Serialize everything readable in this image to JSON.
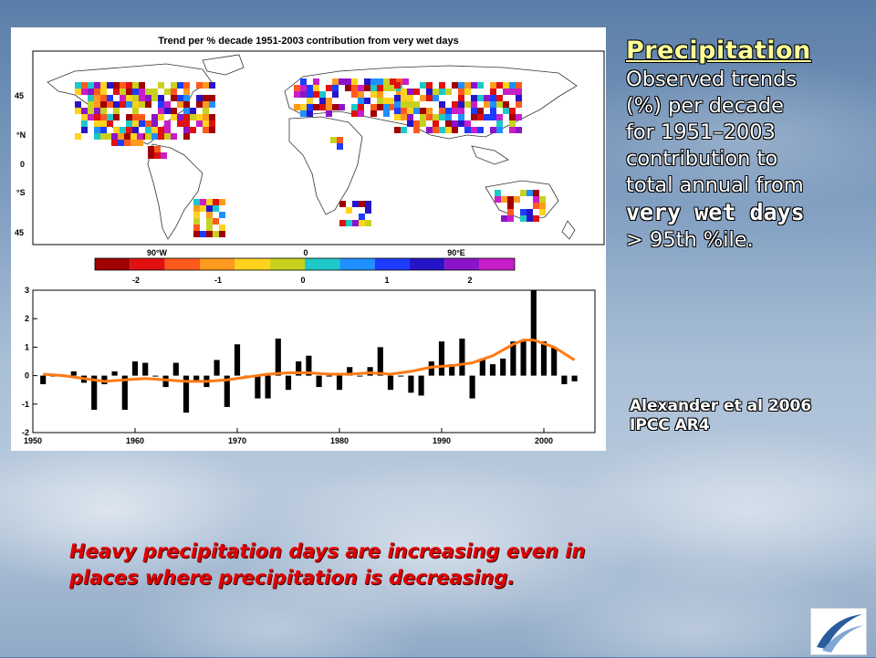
{
  "slide": {
    "heading": "Precipitation",
    "body_line1": "Observed trends",
    "body_line2": "(%) per decade",
    "body_line3": "for 1951–2003",
    "body_line4": "contribution to",
    "body_line5": "total annual from",
    "body_emph": "very wet days",
    "body_tail": "> 95th %ile.",
    "citation_line1": "Alexander et al 2006",
    "citation_line2": "IPCC AR4",
    "bottom_line1": "Heavy precipitation days are increasing even in",
    "bottom_line2": "places where precipitation is decreasing."
  },
  "map": {
    "title": "Trend per % decade 1951-2003 contribution from very wet days",
    "lat_labels": [
      "45",
      "°N",
      "0",
      "°S",
      "45"
    ],
    "lon_labels": [
      "90°W",
      "0",
      "90°E"
    ],
    "colorbar_colors": [
      "#a00000",
      "#e01010",
      "#ff5a1e",
      "#ff9a1e",
      "#ffd21e",
      "#c8d21e",
      "#1ec8c8",
      "#1e90ff",
      "#1e3cff",
      "#2814c8",
      "#8c14c8",
      "#c81ec8"
    ],
    "colorbar_ticks": [
      "-2",
      "-1",
      "0",
      "1",
      "2"
    ]
  },
  "chart_data": {
    "type": "bar",
    "title": "",
    "xlabel": "",
    "ylabel": "",
    "ylim": [
      -2,
      3
    ],
    "xlim": [
      1950,
      2005
    ],
    "x_ticks": [
      "1950",
      "1960",
      "1970",
      "1980",
      "1990",
      "2000"
    ],
    "y_ticks": [
      "3",
      "2",
      "1",
      "0",
      "-1",
      "-2"
    ],
    "series": [
      {
        "x": [
          1951,
          1952,
          1953,
          1954,
          1955,
          1956,
          1957,
          1958,
          1959,
          1960,
          1961,
          1962,
          1963,
          1964,
          1965,
          1966,
          1967,
          1968,
          1969,
          1970,
          1971,
          1972,
          1973,
          1974,
          1975,
          1976,
          1977,
          1978,
          1979,
          1980,
          1981,
          1982,
          1983,
          1984,
          1985,
          1986,
          1987,
          1988,
          1989,
          1990,
          1991,
          1992,
          1993,
          1994,
          1995,
          1996,
          1997,
          1998,
          1999,
          2000,
          2001,
          2002,
          2003
        ],
        "values": [
          -0.3,
          0.0,
          0.0,
          0.15,
          -0.25,
          -1.2,
          -0.3,
          0.15,
          -1.2,
          0.5,
          0.45,
          0.0,
          -0.4,
          0.45,
          -1.3,
          -0.2,
          -0.4,
          0.55,
          -1.1,
          1.1,
          0.0,
          -0.8,
          -0.8,
          1.3,
          -0.5,
          0.5,
          0.7,
          -0.4,
          0.0,
          -0.5,
          0.3,
          0.0,
          0.3,
          1.0,
          -0.5,
          0.0,
          -0.6,
          -0.7,
          0.5,
          1.2,
          0.4,
          1.3,
          -0.8,
          0.6,
          0.4,
          0.6,
          1.2,
          1.2,
          3.0,
          1.2,
          1.0,
          -0.3,
          -0.2
        ]
      },
      {
        "name": "",
        "x": [
          1951,
          1953,
          1955,
          1957,
          1959,
          1961,
          1963,
          1965,
          1967,
          1969,
          1971,
          1973,
          1975,
          1977,
          1979,
          1981,
          1983,
          1985,
          1987,
          1989,
          1991,
          1993,
          1995,
          1997,
          1998,
          1999,
          2001,
          2003
        ],
        "values": [
          0.05,
          0.0,
          -0.1,
          -0.2,
          -0.15,
          -0.1,
          -0.15,
          -0.2,
          -0.2,
          -0.15,
          -0.05,
          0.05,
          0.1,
          0.1,
          0.05,
          0.05,
          0.1,
          0.05,
          0.15,
          0.3,
          0.35,
          0.45,
          0.7,
          1.1,
          1.25,
          1.25,
          1.0,
          0.55
        ]
      }
    ],
    "bar_color": "#000000",
    "line_color": "#ff7a14"
  }
}
